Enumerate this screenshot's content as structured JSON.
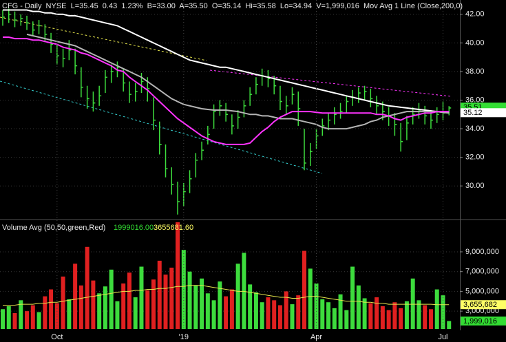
{
  "chart_data": [
    {
      "type": "ohlc",
      "title": "CFG - Daily  NYSE  L=35.45  0.43  1.23%  B=33.00  A=35.50  O=35.14  Hi=35.58  Lo=34.94  V=1,999,016  Mov Avg 1 Line (Close,200,0)",
      "color": "#3ddc3d",
      "high": [
        42.3,
        42.4,
        42.2,
        42.0,
        41.9,
        41.5,
        41.6,
        41.3,
        40.7,
        39.9,
        39.6,
        40.2,
        39.6,
        38.3,
        37.0,
        36.6,
        37.0,
        38.1,
        38.5,
        38.7,
        38.2,
        37.3,
        37.2,
        37.9,
        37.6,
        36.2,
        34.5,
        32.9,
        31.3,
        30.3,
        30.2,
        31.1,
        32.3,
        33.1,
        34.2,
        35.7,
        36.0,
        35.8,
        35.0,
        35.3,
        36.0,
        36.9,
        37.6,
        38.2,
        38.1,
        37.7,
        37.0,
        36.3,
        36.9,
        36.6,
        34.0,
        33.0,
        34.0,
        34.7,
        35.1,
        35.5,
        35.8,
        36.3,
        36.7,
        36.9,
        37.0,
        36.8,
        36.3,
        35.9,
        35.5,
        35.1,
        34.4,
        34.9,
        35.5,
        35.8,
        35.6,
        35.3,
        35.5,
        35.9,
        35.58
      ],
      "low": [
        41.2,
        41.4,
        41.1,
        41.2,
        40.9,
        40.5,
        40.6,
        40.1,
        39.3,
        38.5,
        38.3,
        38.8,
        37.8,
        36.2,
        35.4,
        35.2,
        35.6,
        36.5,
        37.2,
        37.6,
        36.6,
        35.8,
        35.9,
        36.5,
        35.9,
        33.9,
        32.2,
        30.6,
        29.4,
        28.0,
        28.6,
        29.5,
        30.6,
        31.8,
        32.9,
        34.0,
        34.9,
        34.5,
        33.6,
        34.0,
        34.8,
        35.6,
        36.4,
        37.0,
        36.9,
        36.4,
        35.3,
        35.0,
        35.7,
        34.2,
        31.1,
        31.4,
        32.6,
        33.5,
        33.9,
        34.3,
        34.7,
        35.1,
        35.6,
        35.8,
        36.0,
        35.5,
        35.0,
        34.6,
        34.2,
        33.5,
        32.4,
        33.2,
        34.3,
        34.7,
        34.3,
        34.0,
        34.4,
        34.6,
        34.94
      ],
      "close": [
        41.8,
        42.0,
        41.6,
        41.7,
        41.4,
        40.9,
        41.2,
        40.6,
        39.9,
        39.1,
        38.9,
        39.5,
        38.4,
        36.9,
        36.1,
        35.8,
        36.3,
        37.6,
        38.0,
        38.3,
        37.2,
        36.4,
        36.6,
        37.3,
        36.8,
        34.6,
        32.9,
        31.2,
        30.1,
        28.9,
        29.6,
        30.5,
        31.8,
        32.5,
        33.6,
        35.2,
        35.6,
        35.0,
        34.2,
        34.8,
        35.6,
        36.4,
        37.1,
        37.7,
        37.5,
        37.0,
        35.9,
        35.6,
        36.4,
        35.4,
        31.6,
        32.4,
        33.5,
        34.2,
        34.6,
        35.0,
        35.2,
        35.9,
        36.2,
        36.5,
        36.6,
        36.1,
        35.6,
        35.2,
        34.9,
        34.3,
        33.1,
        34.4,
        35.0,
        35.3,
        34.9,
        34.6,
        35.0,
        35.1,
        35.45
      ],
      "lines": [
        {
          "color": "#ffffff",
          "values": [
            42.3,
            42.3,
            42.3,
            42.3,
            42.3,
            42.2,
            42.2,
            42.1,
            42.1,
            42.0,
            42.0,
            41.9,
            41.9,
            41.8,
            41.7,
            41.6,
            41.5,
            41.4,
            41.3,
            41.2,
            41.0,
            40.8,
            40.6,
            40.4,
            40.2,
            40.0,
            39.8,
            39.6,
            39.4,
            39.2,
            39.0,
            38.8,
            38.7,
            38.6,
            38.5,
            38.4,
            38.3,
            38.3,
            38.2,
            38.1,
            38.0,
            37.9,
            37.8,
            37.7,
            37.6,
            37.5,
            37.4,
            37.3,
            37.2,
            37.1,
            37.0,
            36.9,
            36.8,
            36.7,
            36.6,
            36.5,
            36.4,
            36.3,
            36.2,
            36.1,
            36.0,
            35.9,
            35.8,
            35.7,
            35.6,
            35.55,
            35.5,
            35.45,
            35.4,
            35.35,
            35.3,
            35.25,
            35.2,
            35.15,
            35.12
          ]
        },
        {
          "color": "#b4b4b4",
          "values": [
            null,
            null,
            null,
            null,
            40.6,
            40.5,
            40.4,
            40.3,
            40.2,
            40.1,
            40.0,
            39.9,
            39.8,
            39.6,
            39.4,
            39.2,
            39.0,
            38.8,
            38.6,
            38.4,
            38.2,
            38.0,
            37.8,
            37.6,
            37.3,
            37.0,
            36.7,
            36.4,
            36.1,
            35.9,
            35.7,
            35.6,
            35.5,
            35.4,
            35.35,
            35.3,
            35.3,
            35.3,
            35.25,
            35.2,
            35.1,
            35.0,
            35.0,
            34.9,
            34.9,
            34.8,
            34.7,
            34.7,
            34.7,
            34.6,
            34.5,
            34.4,
            34.3,
            34.1,
            34.0,
            34.0,
            34.0,
            34.0,
            34.1,
            34.2,
            34.3,
            34.5,
            34.6,
            34.8,
            34.9,
            35.0,
            35.1,
            35.2,
            35.2,
            35.2,
            35.2,
            35.2,
            35.2,
            35.15,
            35.1
          ]
        },
        {
          "color": "#ff33ff",
          "values": [
            40.4,
            40.4,
            40.3,
            40.3,
            40.3,
            40.2,
            40.2,
            40.1,
            40.0,
            39.9,
            39.7,
            39.6,
            39.5,
            39.3,
            39.2,
            39.0,
            38.8,
            38.6,
            38.4,
            38.1,
            38.0,
            37.6,
            37.3,
            37.0,
            36.7,
            36.3,
            35.9,
            35.5,
            35.1,
            34.7,
            34.4,
            34.1,
            33.8,
            33.5,
            33.3,
            33.1,
            33.0,
            32.9,
            32.9,
            32.9,
            32.9,
            33.0,
            33.4,
            33.8,
            34.1,
            34.5,
            34.8,
            35.0,
            35.2,
            35.2,
            35.2,
            35.2,
            35.15,
            35.1,
            35.1,
            35.1,
            35.1,
            35.1,
            35.1,
            35.1,
            35.1,
            35.1,
            35.0,
            35.0,
            34.9,
            34.7,
            34.6,
            34.8,
            34.9,
            35.0,
            35.1,
            35.1,
            35.2,
            35.2,
            35.2
          ]
        }
      ],
      "ylim": [
        27.7,
        43.0
      ],
      "yticks": [
        {
          "value": 42,
          "label": "42.00"
        },
        {
          "value": 40,
          "label": "40.00"
        },
        {
          "value": 38,
          "label": "38.00"
        },
        {
          "value": 36,
          "label": "36.00"
        },
        {
          "value": 34,
          "label": "34.00"
        },
        {
          "value": 32,
          "label": "32.00"
        },
        {
          "value": 30,
          "label": "30.00"
        }
      ],
      "grid": true,
      "tags": [
        {
          "value": 35.51,
          "color": "#33dd33"
        },
        {
          "value": 35.12,
          "color": "#ffffff"
        }
      ]
    },
    {
      "type": "bar",
      "title": "Volume Avg (50,50,green,Red)",
      "readouts": [
        {
          "value": 1999016,
          "label": "1999016.00",
          "color": "#33dd33"
        },
        {
          "value": 3655681.6,
          "label": "3655681.60",
          "color": "#ffff66"
        }
      ],
      "categories": [
        null,
        null,
        null,
        null,
        null,
        null,
        null,
        null,
        null,
        "Oct",
        null,
        null,
        null,
        null,
        null,
        null,
        null,
        null,
        null,
        null,
        null,
        null,
        null,
        null,
        null,
        null,
        null,
        null,
        null,
        null,
        "'19",
        null,
        null,
        null,
        null,
        null,
        null,
        null,
        null,
        null,
        null,
        null,
        null,
        null,
        null,
        null,
        null,
        null,
        null,
        null,
        null,
        null,
        "Apr",
        null,
        null,
        null,
        null,
        null,
        null,
        null,
        null,
        null,
        null,
        null,
        null,
        null,
        null,
        null,
        null,
        null,
        null,
        null,
        null,
        "Jul",
        null
      ],
      "values": [
        3200000,
        3500000,
        2800000,
        4100000,
        3000000,
        3600000,
        2900000,
        4500000,
        5200000,
        3800000,
        6500000,
        4200000,
        7800000,
        5600000,
        9500000,
        6100000,
        4800000,
        5500000,
        7200000,
        4000000,
        5800000,
        6900000,
        4400000,
        7500000,
        5100000,
        6200000,
        8100000,
        6700000,
        7400000,
        12000000,
        9200000,
        7000000,
        5600000,
        6300000,
        4800000,
        4100000,
        6000000,
        4500000,
        5200000,
        7800000,
        8900000,
        5700000,
        4900000,
        3900000,
        4400000,
        4100000,
        3600000,
        5000000,
        3700000,
        4600000,
        9100000,
        7300000,
        5800000,
        4200000,
        3900000,
        3300000,
        4700000,
        3100000,
        7500000,
        5600000,
        4300000,
        3800000,
        4400000,
        3500000,
        3100000,
        3900000,
        3300000,
        4000000,
        6300000,
        4100000,
        3600000,
        3200000,
        5200000,
        4600000,
        1999016
      ],
      "colors": [
        "#3ddc3d",
        "#3ddc3d",
        "#e02020",
        "#3ddc3d",
        "#e02020",
        "#e02020",
        "#3ddc3d",
        "#e02020",
        "#e02020",
        "#e02020",
        "#e02020",
        "#3ddc3d",
        "#e02020",
        "#e02020",
        "#e02020",
        "#e02020",
        "#3ddc3d",
        "#3ddc3d",
        "#3ddc3d",
        "#3ddc3d",
        "#e02020",
        "#e02020",
        "#3ddc3d",
        "#3ddc3d",
        "#e02020",
        "#e02020",
        "#e02020",
        "#e02020",
        "#e02020",
        "#e02020",
        "#3ddc3d",
        "#3ddc3d",
        "#3ddc3d",
        "#3ddc3d",
        "#3ddc3d",
        "#3ddc3d",
        "#3ddc3d",
        "#e02020",
        "#e02020",
        "#3ddc3d",
        "#3ddc3d",
        "#3ddc3d",
        "#3ddc3d",
        "#3ddc3d",
        "#e02020",
        "#e02020",
        "#e02020",
        "#e02020",
        "#3ddc3d",
        "#e02020",
        "#e02020",
        "#3ddc3d",
        "#3ddc3d",
        "#3ddc3d",
        "#3ddc3d",
        "#3ddc3d",
        "#3ddc3d",
        "#3ddc3d",
        "#3ddc3d",
        "#3ddc3d",
        "#3ddc3d",
        "#e02020",
        "#e02020",
        "#e02020",
        "#e02020",
        "#e02020",
        "#e02020",
        "#3ddc3d",
        "#3ddc3d",
        "#3ddc3d",
        "#e02020",
        "#e02020",
        "#3ddc3d",
        "#3ddc3d",
        "#3ddc3d"
      ],
      "line": {
        "color": "#e6e64c",
        "values": [
          3600000,
          3600000,
          3600000,
          3700000,
          3700000,
          3700000,
          3800000,
          3800000,
          3900000,
          3900000,
          4000000,
          4100000,
          4200000,
          4300000,
          4400000,
          4500000,
          4600000,
          4700000,
          4800000,
          4900000,
          5000000,
          5000000,
          5100000,
          5100000,
          5200000,
          5200000,
          5300000,
          5300000,
          5400000,
          5500000,
          5500000,
          5600000,
          5600000,
          5600000,
          5500000,
          5400000,
          5300000,
          5200000,
          5100000,
          5000000,
          5000000,
          4900000,
          4800000,
          4700000,
          4600000,
          4500000,
          4400000,
          4400000,
          4300000,
          4300000,
          4400000,
          4500000,
          4500000,
          4400000,
          4300000,
          4200000,
          4100000,
          4000000,
          4000000,
          4000000,
          3900000,
          3900000,
          3800000,
          3800000,
          3700000,
          3700000,
          3700000,
          3700000,
          3700000,
          3700000,
          3700000,
          3700000,
          3660000,
          3660000,
          3655681.6
        ]
      },
      "ylim": [
        1200000,
        12200000
      ],
      "yticks": [
        {
          "value": 9000000,
          "label": "9,000,000"
        },
        {
          "value": 7000000,
          "label": "7,000,000"
        },
        {
          "value": 5000000,
          "label": "5,000,000"
        },
        {
          "value": 3000000,
          "label": "3,000,000"
        }
      ],
      "grid": true,
      "tags": [
        {
          "value": 3655682,
          "label": "3,655,682",
          "color": "#ffff66"
        },
        {
          "value": 1999016,
          "label": "1,999,016",
          "color": "#33dd33"
        }
      ]
    }
  ]
}
